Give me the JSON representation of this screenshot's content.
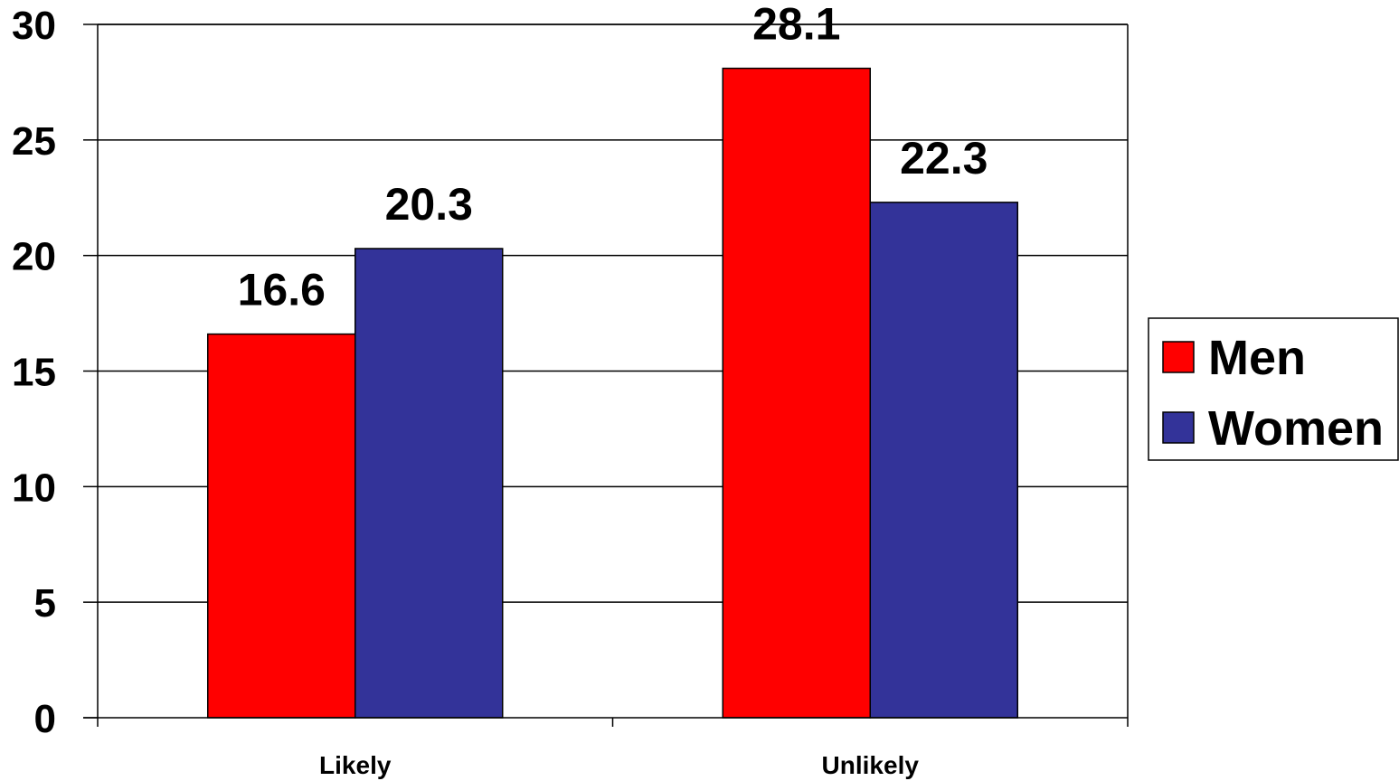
{
  "chart_data": {
    "type": "bar",
    "categories": [
      "Likely",
      "Unlikely"
    ],
    "series": [
      {
        "name": "Men",
        "values": [
          16.6,
          28.1
        ],
        "color": "#FF0000"
      },
      {
        "name": "Women",
        "values": [
          20.3,
          22.3
        ],
        "color": "#333399"
      }
    ],
    "title": "",
    "xlabel": "",
    "ylabel": "",
    "ylim": [
      0,
      30
    ],
    "yticks": [
      0,
      5,
      10,
      15,
      20,
      25,
      30
    ],
    "grid": true,
    "data_labels": true,
    "legend_position": "right"
  }
}
